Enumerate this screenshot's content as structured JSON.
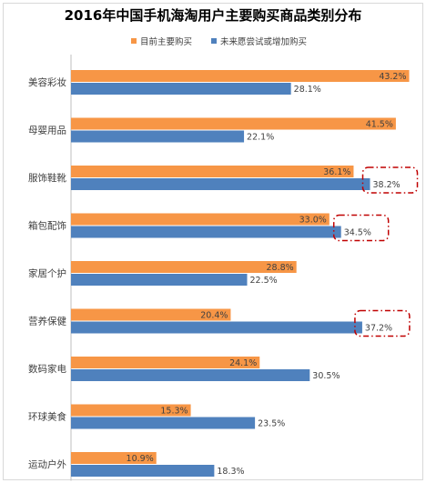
{
  "chart_data": {
    "type": "bar",
    "orientation": "horizontal",
    "title": "2016年中国手机海淘用户主要购买商品类别分布",
    "legend_position": "top-right",
    "value_suffix": "%",
    "xlim": [
      0,
      50
    ],
    "grid": false,
    "categories": [
      "美容彩妆",
      "母婴用品",
      "服饰鞋靴",
      "箱包配饰",
      "家居个护",
      "营养保健",
      "数码家电",
      "环球美食",
      "运动户外"
    ],
    "series": [
      {
        "name": "目前主要购买",
        "color": "#F79646",
        "values": [
          43.2,
          41.5,
          36.1,
          33.0,
          28.8,
          20.4,
          24.1,
          15.3,
          10.9
        ],
        "labels": [
          "43.2%",
          "41.5%",
          "36.1%",
          "33.0%",
          "28.8%",
          "20.4%",
          "24.1%",
          "15.3%",
          "10.9%"
        ]
      },
      {
        "name": "未来愿尝试或增加购买",
        "color": "#4F81BD",
        "values": [
          28.1,
          22.1,
          38.2,
          34.5,
          22.5,
          37.2,
          30.5,
          23.5,
          18.3
        ],
        "labels": [
          "28.1%",
          "22.1%",
          "38.2%",
          "34.5%",
          "22.5%",
          "37.2%",
          "30.5%",
          "23.5%",
          "18.3%"
        ]
      }
    ],
    "highlighted": [
      {
        "category": "服饰鞋靴",
        "series": "未来愿尝试或增加购买",
        "color": "#C00000"
      },
      {
        "category": "箱包配饰",
        "series": "未来愿尝试或增加购买",
        "color": "#C00000"
      },
      {
        "category": "营养保健",
        "series": "未来愿尝试或增加购买",
        "color": "#C00000"
      }
    ]
  }
}
